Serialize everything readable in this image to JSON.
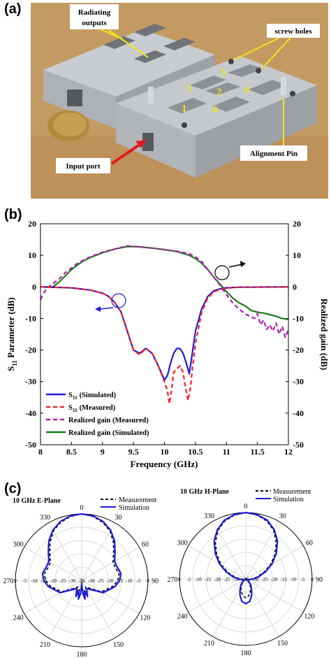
{
  "panels": {
    "a": "(a)",
    "b": "(b)",
    "c": "(c)"
  },
  "photo": {
    "labels": {
      "radiating_outputs_1": "Radiating",
      "radiating_outputs_2": "outputs",
      "screw_holes": "screw holes",
      "input_port": "Input port",
      "alignment_pin": "Alignment Pin"
    },
    "port_numbers": [
      "1",
      "2",
      "3",
      "4",
      "5",
      "6"
    ],
    "colors": {
      "background": "#c49a63",
      "metal": "#b9bcc0",
      "cavity": "#8d9196",
      "coin": "#b08a3c",
      "arrow_yellow": "#f2e318",
      "arrow_red": "#e01a1a"
    }
  },
  "chart_data": [
    {
      "type": "line",
      "xlabel": "Frequency (GHz)",
      "ylabel_left": "S11 Parameter (dB)",
      "ylabel_left_main": "S",
      "ylabel_left_sub": "11",
      "ylabel_left_rest": " Parameter (dB)",
      "ylabel_right": "Realized gain (dB)",
      "xlim": [
        8,
        12
      ],
      "ylim": [
        -50,
        20
      ],
      "x_ticks": [
        "8",
        "8.5",
        "9",
        "9.5",
        "10",
        "10.5",
        "11",
        "11.5",
        "12"
      ],
      "y_ticks": [
        "20",
        "10",
        "0",
        "-10",
        "-20",
        "-30",
        "-40",
        "-50"
      ],
      "grid": false,
      "legend_position": "bottom-left",
      "legend": [
        {
          "main": "S",
          "sub": "11",
          "rest": " (Simulated)"
        },
        {
          "main": "S",
          "sub": "11",
          "rest": " (Measured)"
        },
        {
          "main": "Realized gain (Measured)",
          "sub": "",
          "rest": ""
        },
        {
          "main": "Realized gain (Simulated)",
          "sub": "",
          "rest": ""
        }
      ],
      "series": [
        {
          "name": "S11 (Simulated)",
          "color": "#1c1cd6",
          "dash": "solid",
          "x": [
            8,
            8.5,
            8.8,
            9.0,
            9.1,
            9.2,
            9.3,
            9.4,
            9.5,
            9.6,
            9.7,
            9.8,
            9.9,
            10.0,
            10.05,
            10.1,
            10.15,
            10.2,
            10.25,
            10.3,
            10.35,
            10.4,
            10.45,
            10.5,
            10.6,
            10.7,
            10.8,
            10.9,
            11.0,
            11.2,
            12.0
          ],
          "values": [
            0,
            -0.3,
            -1.0,
            -2.0,
            -3.0,
            -5.0,
            -8.0,
            -14.0,
            -20.0,
            -21.0,
            -19.5,
            -21.0,
            -25.0,
            -29.5,
            -28.0,
            -24.0,
            -21.0,
            -19.5,
            -19.5,
            -21.0,
            -24.0,
            -27.5,
            -21.0,
            -14.0,
            -7.0,
            -3.0,
            -1.2,
            -0.6,
            -0.3,
            -0.1,
            0
          ]
        },
        {
          "name": "S11 (Measured)",
          "color": "#ff1e1e",
          "dash": "dashed",
          "x": [
            8,
            8.5,
            8.8,
            9.0,
            9.1,
            9.2,
            9.3,
            9.4,
            9.5,
            9.6,
            9.7,
            9.8,
            9.9,
            10.0,
            10.05,
            10.08,
            10.12,
            10.15,
            10.2,
            10.25,
            10.3,
            10.35,
            10.38,
            10.42,
            10.45,
            10.5,
            10.6,
            10.7,
            10.8,
            10.9,
            11.0,
            11.2,
            12.0
          ],
          "values": [
            0,
            -0.3,
            -1.0,
            -2.0,
            -3.0,
            -5.0,
            -8.0,
            -14.0,
            -20.0,
            -21.5,
            -19.5,
            -21.0,
            -25.0,
            -30.0,
            -33.0,
            -37.0,
            -32.0,
            -27.0,
            -26.0,
            -25.0,
            -27.0,
            -33.0,
            -36.0,
            -32.0,
            -26.0,
            -18.0,
            -8.0,
            -3.5,
            -1.5,
            -0.8,
            -0.4,
            -0.1,
            0
          ]
        },
        {
          "name": "Realized gain (Measured)",
          "color": "#b21ab2",
          "dash": "dashed",
          "x": [
            8,
            8.05,
            8.1,
            8.2,
            8.3,
            8.4,
            8.5,
            8.6,
            8.7,
            8.8,
            9.0,
            9.2,
            9.4,
            9.6,
            9.8,
            10.0,
            10.2,
            10.4,
            10.5,
            10.6,
            10.7,
            10.8,
            10.9,
            11.0,
            11.1,
            11.2,
            11.3,
            11.4,
            11.45,
            11.5,
            11.55,
            11.6,
            11.65,
            11.7,
            11.75,
            11.8,
            11.85,
            11.9,
            11.95,
            12.0
          ],
          "values": [
            -4.0,
            -2.0,
            -0.5,
            1.0,
            2.5,
            4.5,
            6.0,
            7.5,
            8.5,
            9.5,
            11.0,
            12.0,
            13.0,
            12.7,
            12.3,
            11.8,
            11.3,
            10.5,
            9.5,
            8.0,
            5.5,
            3.0,
            0.5,
            -2.5,
            -5.0,
            -7.0,
            -8.5,
            -9.5,
            -10.0,
            -8.5,
            -12.0,
            -10.5,
            -13.5,
            -12.0,
            -14.0,
            -11.5,
            -15.0,
            -12.5,
            -16.0,
            -13.5
          ]
        },
        {
          "name": "Realized gain (Simulated)",
          "color": "#1a7a1a",
          "dash": "solid",
          "x": [
            8,
            8.2,
            8.3,
            8.4,
            8.5,
            8.6,
            8.7,
            8.8,
            9.0,
            9.2,
            9.4,
            9.6,
            9.8,
            10.0,
            10.2,
            10.4,
            10.5,
            10.6,
            10.7,
            10.8,
            10.9,
            11.0,
            11.1,
            11.2,
            11.3,
            11.4,
            11.5,
            11.6,
            11.7,
            11.8,
            11.9,
            12.0
          ],
          "values": [
            0,
            0,
            1.5,
            3.5,
            5.5,
            7.0,
            8.3,
            9.3,
            10.8,
            12.0,
            12.8,
            12.7,
            12.3,
            11.8,
            11.2,
            10.0,
            9.0,
            7.5,
            5.5,
            3.0,
            0.8,
            -1.5,
            -3.5,
            -5.0,
            -6.0,
            -7.5,
            -8.0,
            -8.3,
            -8.8,
            -9.3,
            -10.0,
            -10.3
          ]
        }
      ]
    },
    {
      "type": "polar",
      "title": "10 GHz E-Plane",
      "angle_ticks": [
        "0",
        "30",
        "60",
        "90",
        "120",
        "150",
        "180",
        "210",
        "240",
        "270",
        "300",
        "330"
      ],
      "radial_ticks": [
        "-35",
        "-30",
        "-25",
        "-20",
        "-15",
        "-10",
        "-5",
        "0"
      ],
      "rlim": [
        -35,
        0
      ],
      "legend_position": "top-right",
      "legend": [
        "Measurement",
        "Simulation"
      ],
      "series": [
        {
          "name": "Simulation",
          "color": "#1c1cd6",
          "dash": "solid",
          "theta": [
            0,
            10,
            20,
            30,
            40,
            50,
            60,
            70,
            80,
            90,
            100,
            110,
            120,
            130,
            140,
            150,
            160,
            165,
            170,
            175,
            180,
            185,
            190,
            195,
            200,
            210,
            220,
            230,
            240,
            250,
            260,
            270,
            280,
            290,
            300,
            310,
            320,
            330,
            340,
            350
          ],
          "values": [
            0,
            -0.5,
            -2,
            -4.5,
            -8,
            -12,
            -15,
            -15,
            -14,
            -15,
            -17,
            -20,
            -22,
            -27,
            -29,
            -30,
            -26,
            -29,
            -25,
            -28,
            -33,
            -28,
            -25,
            -29,
            -26,
            -30,
            -29,
            -27,
            -22,
            -20,
            -17,
            -15,
            -14,
            -15,
            -15,
            -12,
            -8,
            -4.5,
            -2,
            -0.5
          ]
        },
        {
          "name": "Measurement",
          "color": "#000000",
          "dash": "dashed",
          "theta": [
            0,
            10,
            20,
            30,
            40,
            50,
            60,
            70,
            80,
            90,
            100,
            110,
            120,
            130,
            140,
            150,
            160,
            165,
            170,
            175,
            180,
            185,
            190,
            195,
            200,
            210,
            220,
            230,
            240,
            250,
            260,
            270,
            280,
            290,
            300,
            310,
            320,
            330,
            340,
            350
          ],
          "values": [
            0,
            -0.8,
            -2.5,
            -5,
            -9,
            -13,
            -16,
            -16,
            -15,
            -16,
            -18,
            -21,
            -23,
            -28,
            -30,
            -31,
            -27,
            -30,
            -26,
            -29,
            -34,
            -29,
            -26,
            -30,
            -27,
            -31,
            -30,
            -28,
            -23,
            -21,
            -18,
            -16,
            -15,
            -16,
            -16,
            -13,
            -9,
            -5,
            -2.5,
            -0.8
          ]
        }
      ]
    },
    {
      "type": "polar",
      "title": "10 GHz H-Plane",
      "angle_ticks": [
        "0",
        "30",
        "60",
        "90",
        "120",
        "150",
        "180",
        "210",
        "240",
        "270",
        "300",
        "330"
      ],
      "radial_ticks": [
        "-35",
        "-30",
        "-25",
        "-20",
        "-15",
        "-10",
        "-5",
        "0"
      ],
      "rlim": [
        -35,
        0
      ],
      "legend_position": "top-right",
      "legend": [
        "Measurement",
        "Simulation"
      ],
      "series": [
        {
          "name": "Simulation",
          "color": "#1c1cd6",
          "dash": "solid",
          "theta": [
            0,
            10,
            20,
            30,
            40,
            50,
            60,
            70,
            80,
            90,
            100,
            110,
            120,
            130,
            140,
            150,
            160,
            170,
            180,
            190,
            200,
            210,
            220,
            230,
            240,
            250,
            260,
            270,
            280,
            290,
            300,
            310,
            320,
            330,
            340,
            350
          ],
          "values": [
            0,
            -0.6,
            -2,
            -5,
            -9,
            -14,
            -19,
            -24,
            -28,
            -31,
            -33,
            -34,
            -34,
            -33,
            -31,
            -29,
            -26,
            -23,
            -22,
            -23,
            -26,
            -29,
            -31,
            -33,
            -34,
            -34,
            -33,
            -31,
            -28,
            -24,
            -19,
            -14,
            -9,
            -5,
            -2,
            -0.6
          ]
        },
        {
          "name": "Measurement",
          "color": "#000000",
          "dash": "dashed",
          "theta": [
            0,
            10,
            20,
            30,
            40,
            50,
            60,
            70,
            80,
            90,
            100,
            110,
            120,
            130,
            140,
            150,
            160,
            170,
            180,
            190,
            200,
            210,
            220,
            230,
            240,
            250,
            260,
            270,
            280,
            290,
            300,
            310,
            320,
            330,
            340,
            350
          ],
          "values": [
            0,
            -0.8,
            -2.5,
            -5.5,
            -10,
            -15,
            -20,
            -25,
            -29,
            -32,
            -34,
            -35,
            -35,
            -34,
            -32,
            -30,
            -28,
            -26,
            -25,
            -26,
            -28,
            -30,
            -32,
            -34,
            -35,
            -35,
            -34,
            -32,
            -29,
            -25,
            -20,
            -15,
            -10,
            -5.5,
            -2.5,
            -0.8
          ]
        }
      ]
    }
  ]
}
